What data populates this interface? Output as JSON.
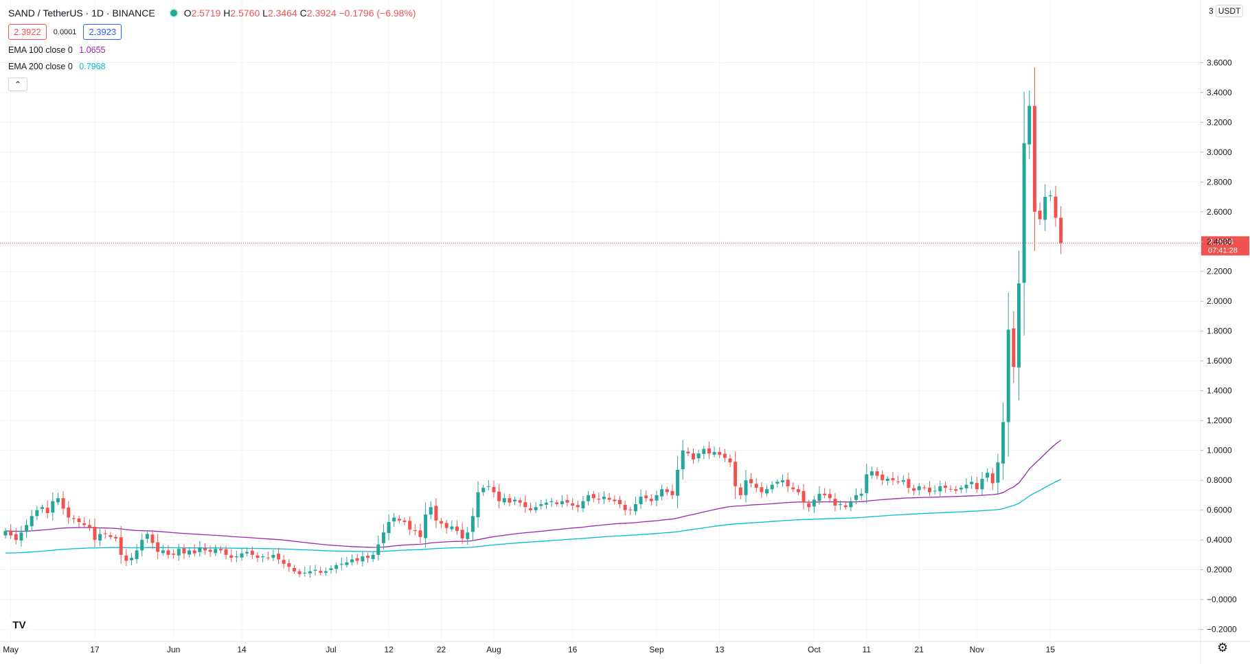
{
  "header": {
    "title": "SAND / TetherUS · 1D · BINANCE",
    "ohlc": {
      "o_label": "O",
      "o": "2.5719",
      "h_label": "H",
      "h": "2.5760",
      "l_label": "L",
      "l": "2.3464",
      "c_label": "C",
      "c": "2.3924",
      "change": "−0.1796 (−6.98%)"
    },
    "sell_price": "2.3922",
    "spread": "0.0001",
    "buy_price": "2.3923"
  },
  "indicators": [
    {
      "label": "EMA 100 close 0",
      "value": "1.0655",
      "color": "#9c27b0"
    },
    {
      "label": "EMA 200 close 0",
      "value": "0.7968",
      "color": "#00bcd4"
    }
  ],
  "collapse_icon": "chevron-up-icon",
  "price_axis": {
    "currency": "USDT",
    "prefix": "3",
    "current_price_label": "2.3924",
    "countdown": "07:41:28"
  },
  "colors": {
    "up": "#26a69a",
    "down": "#ef5350",
    "ema100": "#9c27b0",
    "ema200": "#00bcd4"
  },
  "chart_data": {
    "type": "candlestick",
    "title": "SAND / TetherUS · 1D · BINANCE",
    "ylim": [
      -0.28,
      4.02
    ],
    "y_ticks": [
      "−0.2000",
      "−0.0000",
      "0.2000",
      "0.4000",
      "0.6000",
      "0.8000",
      "1.0000",
      "1.2000",
      "1.4000",
      "1.6000",
      "1.8000",
      "2.0000",
      "2.2000",
      "2.4000",
      "2.6000",
      "2.8000",
      "3.0000",
      "3.2000",
      "3.4000",
      "3.6000"
    ],
    "y_tick_values": [
      -0.2,
      0,
      0.2,
      0.4,
      0.6,
      0.8,
      1.0,
      1.2,
      1.4,
      1.6,
      1.8,
      2.0,
      2.2,
      2.4,
      2.6,
      2.8,
      3.0,
      3.2,
      3.4,
      3.6
    ],
    "x_ticks": [
      {
        "label": "May",
        "day": 1
      },
      {
        "label": "17",
        "day": 17
      },
      {
        "label": "Jun",
        "day": 32
      },
      {
        "label": "14",
        "day": 45
      },
      {
        "label": "Jul",
        "day": 62
      },
      {
        "label": "12",
        "day": 73
      },
      {
        "label": "22",
        "day": 83
      },
      {
        "label": "Aug",
        "day": 93
      },
      {
        "label": "16",
        "day": 108
      },
      {
        "label": "Sep",
        "day": 124
      },
      {
        "label": "13",
        "day": 136
      },
      {
        "label": "Oct",
        "day": 154
      },
      {
        "label": "11",
        "day": 164
      },
      {
        "label": "21",
        "day": 174
      },
      {
        "label": "Nov",
        "day": 185
      },
      {
        "label": "15",
        "day": 199
      }
    ],
    "x_note": "day index counted from 2021-05-01 (day 1)",
    "first_candle_date": "2021-04-30",
    "close": [
      0.46,
      0.43,
      0.4,
      0.45,
      0.5,
      0.56,
      0.6,
      0.62,
      0.58,
      0.66,
      0.68,
      0.61,
      0.55,
      0.54,
      0.52,
      0.5,
      0.48,
      0.4,
      0.44,
      0.44,
      0.42,
      0.41,
      0.3,
      0.26,
      0.28,
      0.33,
      0.4,
      0.44,
      0.38,
      0.32,
      0.33,
      0.3,
      0.3,
      0.34,
      0.31,
      0.33,
      0.31,
      0.35,
      0.33,
      0.32,
      0.34,
      0.33,
      0.3,
      0.28,
      0.29,
      0.31,
      0.32,
      0.3,
      0.28,
      0.29,
      0.28,
      0.3,
      0.27,
      0.24,
      0.22,
      0.19,
      0.17,
      0.18,
      0.19,
      0.2,
      0.18,
      0.19,
      0.21,
      0.23,
      0.24,
      0.25,
      0.27,
      0.26,
      0.29,
      0.28,
      0.3,
      0.37,
      0.45,
      0.52,
      0.55,
      0.53,
      0.52,
      0.47,
      0.46,
      0.42,
      0.57,
      0.62,
      0.53,
      0.51,
      0.48,
      0.49,
      0.46,
      0.41,
      0.45,
      0.56,
      0.72,
      0.75,
      0.76,
      0.72,
      0.66,
      0.68,
      0.65,
      0.67,
      0.65,
      0.62,
      0.6,
      0.62,
      0.64,
      0.65,
      0.66,
      0.64,
      0.66,
      0.65,
      0.63,
      0.62,
      0.66,
      0.7,
      0.68,
      0.67,
      0.69,
      0.67,
      0.66,
      0.64,
      0.6,
      0.6,
      0.64,
      0.69,
      0.68,
      0.66,
      0.7,
      0.74,
      0.72,
      0.7,
      0.87,
      1.0,
      0.98,
      0.94,
      0.98,
      1.01,
      0.98,
      0.99,
      0.97,
      0.95,
      0.92,
      0.76,
      0.7,
      0.8,
      0.78,
      0.75,
      0.72,
      0.74,
      0.77,
      0.79,
      0.8,
      0.76,
      0.74,
      0.72,
      0.65,
      0.62,
      0.67,
      0.71,
      0.7,
      0.68,
      0.63,
      0.64,
      0.62,
      0.66,
      0.7,
      0.71,
      0.84,
      0.86,
      0.83,
      0.8,
      0.81,
      0.8,
      0.79,
      0.8,
      0.75,
      0.73,
      0.76,
      0.75,
      0.72,
      0.73,
      0.76,
      0.75,
      0.74,
      0.73,
      0.75,
      0.77,
      0.79,
      0.74,
      0.81,
      0.85,
      0.78,
      0.92,
      1.19,
      1.81,
      1.56,
      2.12,
      3.06,
      3.31,
      2.6,
      2.55,
      2.7,
      2.71,
      2.56,
      2.39
    ]
  }
}
